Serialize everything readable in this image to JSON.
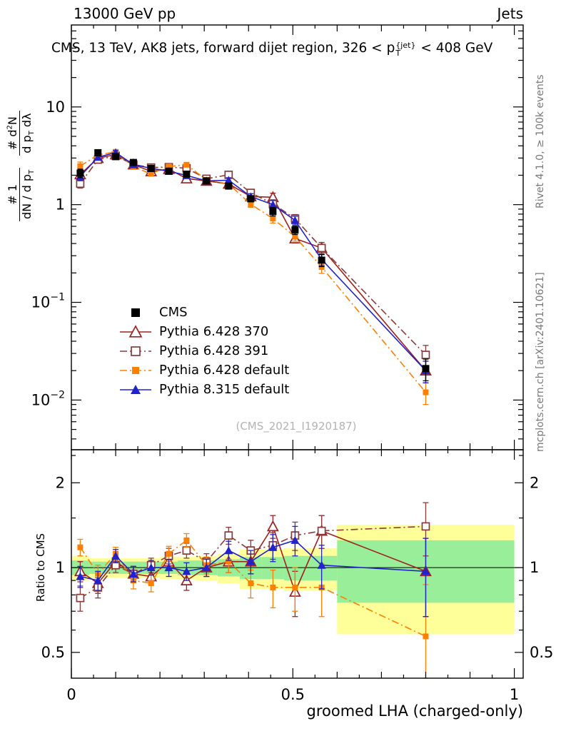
{
  "header": {
    "left": "13000 GeV pp",
    "right": "Jets"
  },
  "title": {
    "pre": "CMS, 13 TeV, AK8 jets, forward dijet region, 326 < p",
    "sup": "{jet}",
    "sub": "T",
    "post": " < 408 GeV"
  },
  "labels": {
    "ratio_y": "Ratio to CMS",
    "x": "groomed LHA (charged-only)",
    "watermark": "(CMS_2021_I1920187)"
  },
  "ylabel_main": {
    "f1_num": "# 1",
    "f1_den_pre": "dN / d p",
    "f1_den_sub": "T",
    "f2_num_pre": "# d",
    "f2_num_sup": "2",
    "f2_num_post": "N",
    "f2_den_pre": "d p",
    "f2_den_sub": "T",
    "f2_den_post": " dλ"
  },
  "side_notes": {
    "rivet": "Rivet 4.1.0, ≥ 100k events",
    "mcplots": "mcplots.cern.ch [arXiv:2401.10621]"
  },
  "chart_data": {
    "type": "line",
    "title": "CMS, 13 TeV, AK8 jets, forward dijet region, 326 < pT{jet} < 408 GeV",
    "xlabel": "groomed LHA (charged-only)",
    "ylabel_main": "# 1/dN/dpT  d2N/dpT dλ",
    "ylabel_ratio": "Ratio to CMS",
    "x_axis": {
      "range": [
        0,
        1.02
      ],
      "major_ticks": [
        0,
        0.5,
        1
      ],
      "major_tick_labels": [
        "0",
        "0.5",
        "1"
      ]
    },
    "main_axis": {
      "scale": "log",
      "range": [
        0.0031,
        69
      ],
      "decade_ticks": [
        10,
        1,
        0.1,
        0.01
      ],
      "decade_tick_labels": [
        "10",
        "1",
        "10^-1",
        "10^-2"
      ]
    },
    "ratio_axis": {
      "scale": "log",
      "range": [
        0.405,
        2.62
      ],
      "major_ticks": [
        0.5,
        1,
        2
      ],
      "major_tick_labels": [
        "0.5",
        "1",
        "2"
      ],
      "minor_ticks": [
        0.6,
        0.7,
        0.8,
        0.9,
        1.5,
        2.5
      ]
    },
    "x": [
      0.02,
      0.06,
      0.1,
      0.14,
      0.18,
      0.22,
      0.26,
      0.305,
      0.355,
      0.405,
      0.455,
      0.505,
      0.565,
      0.8
    ],
    "bin_edges": [
      0,
      0.04,
      0.08,
      0.12,
      0.16,
      0.2,
      0.24,
      0.28,
      0.33,
      0.38,
      0.43,
      0.48,
      0.53,
      0.6,
      1.0
    ],
    "yerr_rel": [
      0.1,
      0.06,
      0.05,
      0.05,
      0.05,
      0.05,
      0.05,
      0.06,
      0.06,
      0.07,
      0.1,
      0.1,
      0.14,
      0.25
    ],
    "ratio_err": [
      0.08,
      0.07,
      0.06,
      0.06,
      0.06,
      0.07,
      0.07,
      0.07,
      0.09,
      0.1,
      0.13,
      0.15,
      0.18,
      0.3
    ],
    "bands": {
      "green_color": "#99ee99",
      "yellow_color": "#ffff99",
      "green_halfwidth": [
        0.06,
        0.05,
        0.05,
        0.05,
        0.05,
        0.05,
        0.06,
        0.06,
        0.07,
        0.09,
        0.09,
        0.1,
        0.1,
        0.25
      ],
      "yellow_halfwidth": [
        0.1,
        0.08,
        0.08,
        0.08,
        0.08,
        0.09,
        0.09,
        0.1,
        0.12,
        0.16,
        0.16,
        0.17,
        0.17,
        0.42
      ]
    },
    "series": [
      {
        "name": "CMS",
        "label": "CMS",
        "color": "#000000",
        "marker": "square-filled",
        "line": "none",
        "msize": 5,
        "values": [
          2.1,
          3.4,
          3.1,
          2.7,
          2.35,
          2.2,
          2.05,
          1.75,
          1.55,
          1.15,
          0.85,
          0.55,
          0.27,
          0.021
        ]
      },
      {
        "name": "Pythia 6.428 370",
        "label": "Pythia 6.428 370",
        "color": "#a02020",
        "marker": "triangle-open",
        "line": "solid",
        "msize": 5,
        "values": [
          2.04,
          2.99,
          3.26,
          2.57,
          2.19,
          2.31,
          1.85,
          1.75,
          1.63,
          1.21,
          1.19,
          0.45,
          0.36,
          0.02
        ],
        "ratio": [
          0.97,
          0.88,
          1.05,
          0.95,
          0.93,
          1.05,
          0.9,
          1.0,
          1.05,
          1.05,
          1.4,
          0.82,
          1.35,
          0.97
        ]
      },
      {
        "name": "Pythia 6.428 391",
        "label": "Pythia 6.428 391",
        "color": "#8b3a3a",
        "marker": "square-open",
        "line": "dashdot",
        "msize": 5,
        "values": [
          1.64,
          2.89,
          3.16,
          2.57,
          2.4,
          2.42,
          2.36,
          1.84,
          2.02,
          1.32,
          1.02,
          0.72,
          0.36,
          0.029
        ],
        "ratio": [
          0.78,
          0.85,
          1.02,
          0.95,
          1.02,
          1.1,
          1.15,
          1.05,
          1.3,
          1.15,
          1.2,
          1.3,
          1.35,
          1.4
        ]
      },
      {
        "name": "Pythia 6.428 default",
        "label": "Pythia 6.428 default",
        "color": "#ff8000",
        "marker": "square-filled",
        "line": "dashdot",
        "msize": 4,
        "values": [
          2.48,
          3.23,
          3.47,
          2.43,
          2.07,
          2.46,
          2.56,
          1.79,
          1.63,
          1.01,
          0.72,
          0.47,
          0.23,
          0.012
        ],
        "ratio": [
          1.18,
          0.95,
          1.12,
          0.9,
          0.88,
          1.12,
          1.25,
          1.02,
          1.05,
          0.88,
          0.85,
          0.85,
          0.85,
          0.57
        ]
      },
      {
        "name": "Pythia 8.315 default",
        "label": "Pythia 8.315 default",
        "color": "#2222cc",
        "marker": "triangle-filled",
        "line": "solid",
        "msize": 5,
        "values": [
          1.95,
          3.06,
          3.41,
          2.57,
          2.35,
          2.2,
          1.99,
          1.75,
          1.78,
          1.21,
          1.0,
          0.69,
          0.275,
          0.02
        ],
        "ratio": [
          0.93,
          0.9,
          1.1,
          0.95,
          1.0,
          1.0,
          0.97,
          1.0,
          1.15,
          1.05,
          1.18,
          1.25,
          1.02,
          0.97
        ]
      }
    ]
  }
}
